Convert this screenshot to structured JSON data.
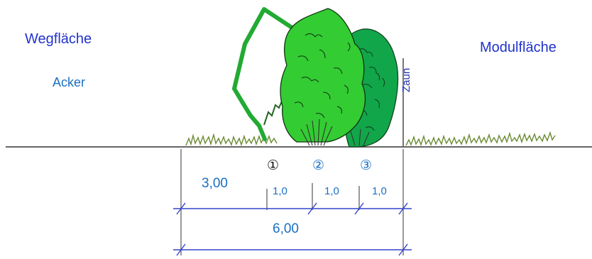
{
  "labels": {
    "path_area": "Wegfläche",
    "field": "Acker",
    "module_area": "Modulfläche",
    "fence": "Zaun"
  },
  "dimensions": {
    "left_offset": "3,00",
    "row1_width": "1,0",
    "row2_width": "1,0",
    "row3_width": "1,0",
    "total": "6,00"
  },
  "rows": {
    "r1": "①",
    "r2": "②",
    "r3": "③"
  },
  "colors": {
    "label_blue": "#2233cc",
    "dim_blue": "#1a6fc4",
    "dim_line": "#3344cc",
    "hedge_light": "#33cc33",
    "hedge_mid": "#22aa44",
    "hedge_dark": "#119944",
    "climber": "#22aa33",
    "grass": "#668833"
  }
}
